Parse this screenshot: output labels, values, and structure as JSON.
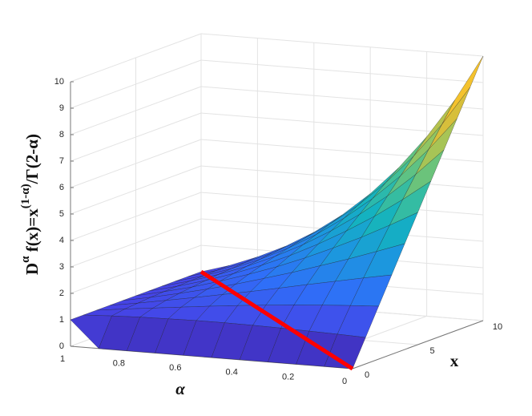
{
  "chart_data": {
    "type": "surface",
    "zlabel": {
      "base": "D",
      "sup1": "α",
      "mid": " f(x)=x",
      "sup2": "(1-α)",
      "end": "/Γ(2-α)"
    },
    "alabel": "α",
    "xlabel": "x",
    "alpha": [
      0,
      0.1,
      0.2,
      0.3,
      0.4,
      0.5,
      0.6,
      0.7,
      0.8,
      0.9,
      1
    ],
    "x": [
      0,
      1,
      2,
      3,
      4,
      5,
      6,
      7,
      8,
      9,
      10
    ],
    "z": [
      [
        0,
        1,
        2,
        3,
        4,
        5,
        6,
        7,
        8,
        9,
        10
      ],
      [
        0,
        1.04,
        1.94,
        2.8,
        3.62,
        4.43,
        5.22,
        5.99,
        6.76,
        7.51,
        8.26
      ],
      [
        0,
        1.07,
        1.87,
        2.59,
        3.25,
        3.89,
        4.5,
        5.09,
        5.67,
        6.23,
        6.78
      ],
      [
        0,
        1.1,
        1.79,
        2.38,
        2.91,
        3.4,
        3.86,
        4.3,
        4.72,
        5.13,
        5.52
      ],
      [
        0,
        1.12,
        1.7,
        2.16,
        2.57,
        2.94,
        3.28,
        3.6,
        3.9,
        4.18,
        4.46
      ],
      [
        0,
        1.13,
        1.6,
        1.95,
        2.26,
        2.52,
        2.76,
        2.99,
        3.19,
        3.39,
        3.57
      ],
      [
        0,
        1.13,
        1.49,
        1.75,
        1.96,
        2.15,
        2.31,
        2.46,
        2.59,
        2.71,
        2.83
      ],
      [
        0,
        1.11,
        1.37,
        1.55,
        1.69,
        1.81,
        1.91,
        2,
        2.08,
        2.15,
        2.22
      ],
      [
        0,
        1.09,
        1.25,
        1.36,
        1.44,
        1.5,
        1.56,
        1.61,
        1.65,
        1.69,
        1.73
      ],
      [
        0,
        1.05,
        1.13,
        1.17,
        1.21,
        1.24,
        1.26,
        1.28,
        1.29,
        1.31,
        1.32
      ],
      [
        1,
        1,
        1,
        1,
        1,
        1,
        1,
        1,
        1,
        1,
        1
      ]
    ],
    "line": {
      "color": "#ff0000",
      "alpha": [
        0,
        1
      ],
      "x": [
        0,
        10
      ],
      "z": [
        0,
        1
      ]
    },
    "alim": [
      0,
      1
    ],
    "xlim": [
      0,
      10
    ],
    "zlim": [
      0,
      10
    ],
    "aticks": [
      0,
      0.2,
      0.4,
      0.6,
      0.8,
      1
    ],
    "xticks": [
      0,
      5,
      10
    ],
    "zticks": [
      0,
      1,
      2,
      3,
      4,
      5,
      6,
      7,
      8,
      9,
      10
    ],
    "clim": [
      0,
      10
    ],
    "colormap": [
      "#3e26a8",
      "#4544e6",
      "#2f6ff8",
      "#1c96df",
      "#14b2c0",
      "#46c193",
      "#98c55e",
      "#d6bf3c",
      "#fbc32a",
      "#f5e51f"
    ],
    "grid": true
  }
}
